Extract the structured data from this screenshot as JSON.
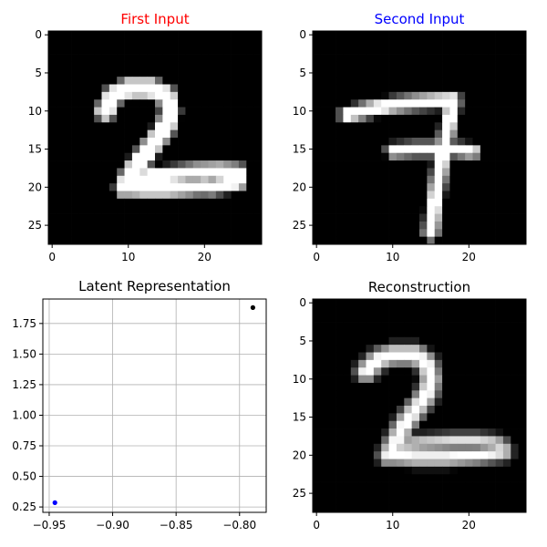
{
  "chart_data": [
    {
      "type": "heatmap",
      "title": "First Input",
      "title_color": "#ff0000",
      "colormap": "gray",
      "xlim": [
        -0.5,
        27.5
      ],
      "ylim": [
        27.5,
        -0.5
      ],
      "xticks": [
        0,
        10,
        20
      ],
      "yticks": [
        0,
        5,
        10,
        15,
        20,
        25
      ],
      "show_xticks": true,
      "strokes": [
        {
          "points": [
            [
              7,
              10
            ],
            [
              8,
              8
            ],
            [
              10,
              7
            ],
            [
              13,
              7
            ],
            [
              15,
              8
            ],
            [
              15.5,
              10
            ],
            [
              15,
              12
            ],
            [
              13.5,
              14
            ],
            [
              12,
              16
            ],
            [
              10.5,
              18
            ],
            [
              9.5,
              20
            ]
          ],
          "width": 1.7
        },
        {
          "points": [
            [
              9.5,
              20
            ],
            [
              12,
              20.2
            ],
            [
              15,
              20.2
            ],
            [
              18,
              20
            ],
            [
              20,
              19.8
            ]
          ],
          "width": 1.5
        },
        {
          "points": [
            [
              10,
              19
            ],
            [
              13,
              18.6
            ],
            [
              16,
              18.3
            ],
            [
              19,
              18
            ],
            [
              22,
              17.9
            ],
            [
              24.5,
              18.1
            ],
            [
              24.5,
              19.2
            ],
            [
              23,
              19.6
            ],
            [
              20.5,
              20
            ]
          ],
          "width": 1.5
        }
      ]
    },
    {
      "type": "heatmap",
      "title": "Second Input",
      "title_color": "#0000ff",
      "colormap": "gray",
      "xlim": [
        -0.5,
        27.5
      ],
      "ylim": [
        27.5,
        -0.5
      ],
      "xticks": [
        0,
        10,
        20
      ],
      "yticks": [
        0,
        5,
        10,
        15,
        20,
        25
      ],
      "show_xticks": true,
      "strokes": [
        {
          "points": [
            [
              4,
              10.5
            ],
            [
              7,
              9.8
            ],
            [
              10,
              9.2
            ],
            [
              13,
              8.9
            ],
            [
              16,
              8.7
            ],
            [
              18,
              8.6
            ]
          ],
          "width": 1.4
        },
        {
          "points": [
            [
              18,
              8.6
            ],
            [
              17.5,
              11
            ],
            [
              17,
              13.5
            ],
            [
              16.5,
              16
            ],
            [
              16,
              19
            ],
            [
              15.5,
              22
            ],
            [
              15,
              26
            ]
          ],
          "width": 1.4
        },
        {
          "points": [
            [
              10,
              15.2
            ],
            [
              13,
              15
            ],
            [
              16,
              15
            ],
            [
              18,
              15
            ],
            [
              20.5,
              15.3
            ]
          ],
          "width": 1.3
        }
      ]
    },
    {
      "type": "scatter",
      "title": "Latent Representation",
      "title_color": "#000000",
      "xlim": [
        -0.955,
        -0.779
      ],
      "ylim": [
        0.206,
        1.95
      ],
      "xticks": [
        -0.95,
        -0.9,
        -0.85,
        -0.8
      ],
      "xtick_labels": [
        "−0.95",
        "−0.90",
        "−0.85",
        "−0.80"
      ],
      "yticks": [
        0.25,
        0.5,
        0.75,
        1.0,
        1.25,
        1.5,
        1.75
      ],
      "ytick_labels": [
        "0.25",
        "0.50",
        "0.75",
        "1.00",
        "1.25",
        "1.50",
        "1.75"
      ],
      "grid": true,
      "points": [
        {
          "x": -0.9455,
          "y": 0.285,
          "color": "#0000ff"
        },
        {
          "x": -0.7895,
          "y": 1.88,
          "color": "#000000"
        }
      ]
    },
    {
      "type": "heatmap",
      "title": "Reconstruction",
      "title_color": "#000000",
      "colormap": "gray",
      "xlim": [
        -0.5,
        27.5
      ],
      "ylim": [
        27.5,
        -0.5
      ],
      "xticks": [
        0,
        10,
        20
      ],
      "yticks": [
        0,
        5,
        10,
        15,
        20,
        25
      ],
      "show_xticks": true,
      "blur": true,
      "strokes": [
        {
          "points": [
            [
              6.5,
              9
            ],
            [
              8,
              7.5
            ],
            [
              10,
              6.8
            ],
            [
              13,
              6.8
            ],
            [
              14.5,
              8
            ],
            [
              15,
              10
            ],
            [
              14.5,
              12
            ],
            [
              13,
              14
            ],
            [
              11.5,
              16
            ],
            [
              10.5,
              18
            ],
            [
              9.5,
              20
            ]
          ],
          "width": 2.0
        },
        {
          "points": [
            [
              9.5,
              20
            ],
            [
              13,
              20.3
            ],
            [
              17,
              20.3
            ],
            [
              21,
              20
            ],
            [
              24.5,
              19.5
            ]
          ],
          "width": 1.8
        },
        {
          "points": [
            [
              10,
              18.8
            ],
            [
              14,
              18.4
            ],
            [
              18,
              18.2
            ],
            [
              21,
              18.2
            ],
            [
              23.5,
              18.4
            ],
            [
              24.5,
              19
            ]
          ],
          "width": 1.6
        }
      ]
    }
  ]
}
